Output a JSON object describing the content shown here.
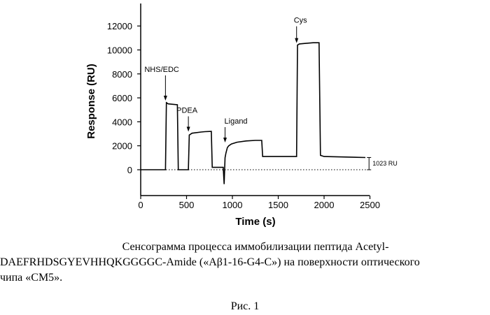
{
  "chart_data": {
    "type": "line",
    "xlabel": "Time (s)",
    "ylabel": "Response (RU)",
    "xlim": [
      0,
      2500
    ],
    "ylim": [
      -1200,
      14000
    ],
    "xticks": [
      0,
      500,
      1000,
      1500,
      2000,
      2500
    ],
    "xtick_labels": [
      "0",
      "500",
      "1000",
      "1500",
      "2000",
      "2500"
    ],
    "yticks": [
      0,
      2000,
      4000,
      6000,
      8000,
      10000,
      12000
    ],
    "ytick_labels": [
      "0",
      "2000",
      "4000",
      "6000",
      "8000",
      "10000",
      "12000"
    ],
    "grid": false,
    "series": [
      {
        "x": [
          0,
          270,
          280,
          300,
          400,
          410,
          500,
          520,
          530,
          560,
          660,
          700,
          770,
          780,
          900,
          910,
          920,
          930,
          945,
          960,
          990,
          1050,
          1150,
          1250,
          1320,
          1330,
          1700,
          1710,
          1730,
          1800,
          1880,
          1945,
          1960,
          2000,
          2450
        ],
        "y": [
          0,
          0,
          5600,
          5500,
          5420,
          0,
          0,
          0,
          2900,
          3050,
          3150,
          3180,
          3200,
          200,
          200,
          -1200,
          1000,
          1400,
          1850,
          2000,
          2150,
          2300,
          2400,
          2450,
          2450,
          1100,
          1100,
          10400,
          10500,
          10550,
          10600,
          10600,
          1200,
          1100,
          1023
        ]
      }
    ],
    "baseline_value": 0,
    "annotations": [
      {
        "text": "NHS/EDC",
        "x": 270,
        "y": 5600
      },
      {
        "text": "PDEA",
        "x": 520,
        "y": 3000
      },
      {
        "text": "Ligand",
        "x": 920,
        "y": 2100
      },
      {
        "text": "Cys",
        "x": 1700,
        "y": 10400
      }
    ],
    "bracket_label": "1023 RU",
    "bracket_value": 1023
  },
  "caption": {
    "line1": "Сенсограмма процесса иммобилизации пептида Acetyl-",
    "line2": "DAEFRHDSGYEVHHQKGGGGC-Amide («Aβ1-16-G4-C») на поверхности оптического",
    "line3": "чипа «CM5»."
  },
  "figure_label": "Рис. 1"
}
